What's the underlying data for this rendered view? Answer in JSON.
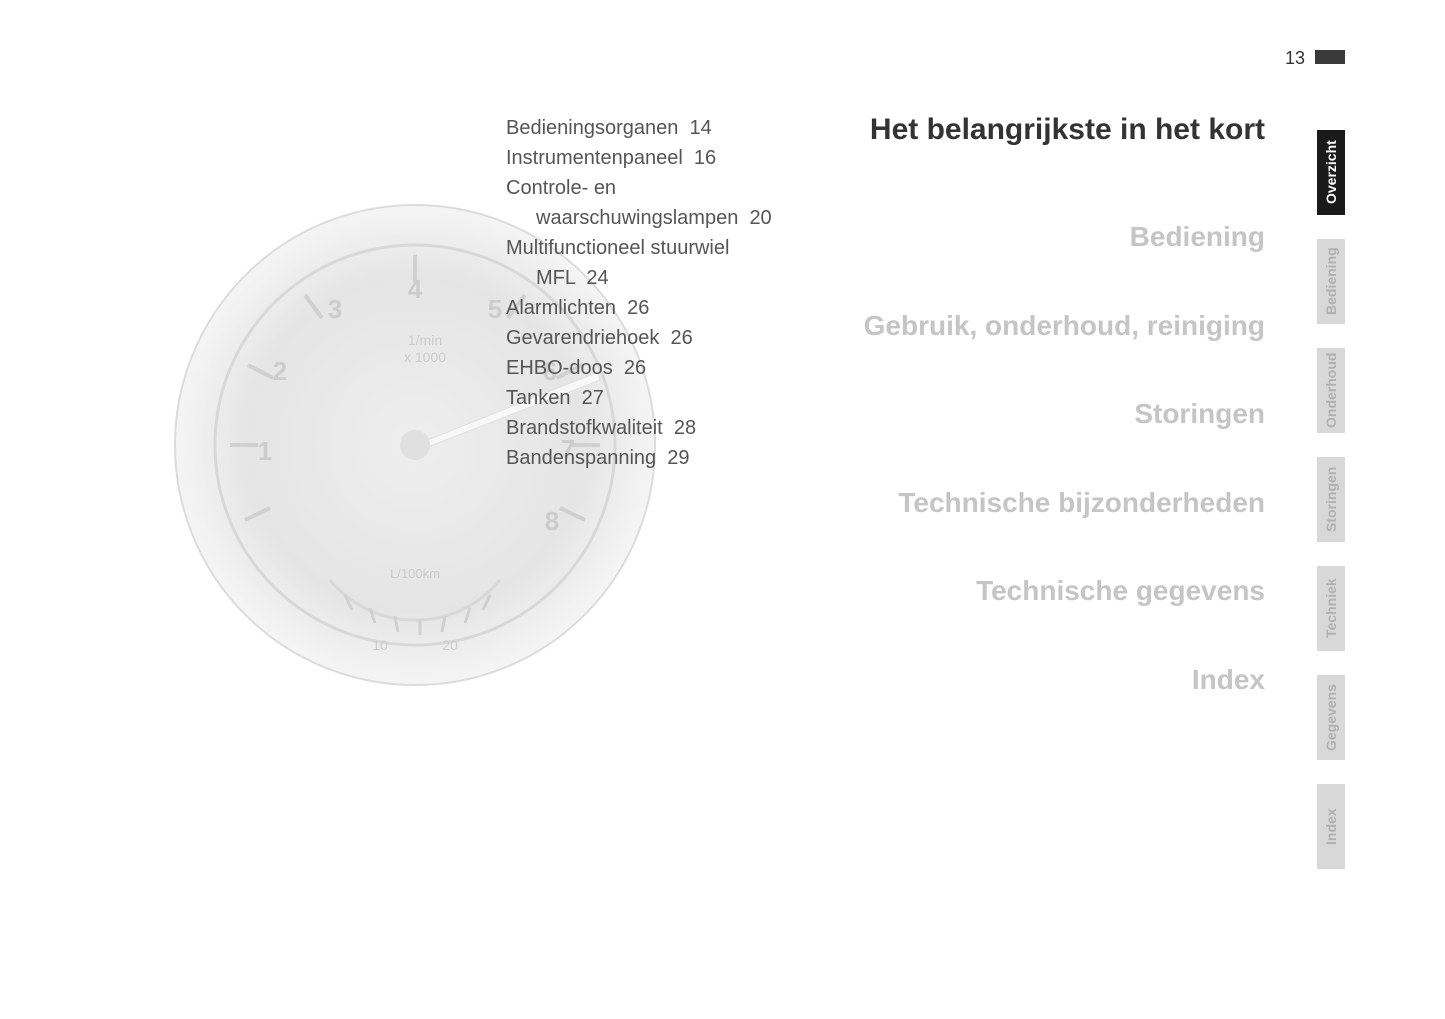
{
  "page_number": "13",
  "toc": [
    {
      "label": "Bedieningsorganen",
      "page": "14",
      "indent": false
    },
    {
      "label": "Instrumentenpaneel",
      "page": "16",
      "indent": false
    },
    {
      "label": "Controle- en",
      "page": "",
      "indent": false
    },
    {
      "label": "waarschuwingslampen",
      "page": "20",
      "indent": true
    },
    {
      "label": "Multifunctioneel stuurwiel",
      "page": "",
      "indent": false
    },
    {
      "label": "MFL",
      "page": "24",
      "indent": true
    },
    {
      "label": "Alarmlichten",
      "page": "26",
      "indent": false
    },
    {
      "label": "Gevarendriehoek",
      "page": "26",
      "indent": false
    },
    {
      "label": "EHBO-doos",
      "page": "26",
      "indent": false
    },
    {
      "label": "Tanken",
      "page": "27",
      "indent": false
    },
    {
      "label": "Brandstofkwaliteit",
      "page": "28",
      "indent": false
    },
    {
      "label": "Bandenspanning",
      "page": "29",
      "indent": false
    }
  ],
  "main_heading": "Het belangrijkste in het kort",
  "sections": [
    "Bediening",
    "Gebruik, onderhoud, reiniging",
    "Storingen",
    "Technische bijzonderheden",
    "Technische gegevens",
    "Index"
  ],
  "tabs": [
    {
      "label": "Overzicht",
      "active": true
    },
    {
      "label": "Bediening",
      "active": false
    },
    {
      "label": "Onderhoud",
      "active": false
    },
    {
      "label": "Storingen",
      "active": false
    },
    {
      "label": "Techniek",
      "active": false
    },
    {
      "label": "Gegevens",
      "active": false
    },
    {
      "label": "Index",
      "active": false
    }
  ],
  "gauge": {
    "background_fill": "#e8e8e8",
    "stroke_color": "#d5d5d5",
    "needle_color": "#f5f5f5",
    "text_color": "#cccccc",
    "rpm_label": "1/min",
    "rpm_mult": "x 1000",
    "speed_label": "L/100km",
    "numbers": [
      "1",
      "2",
      "3",
      "4",
      "5",
      "6",
      "7",
      "8"
    ],
    "speed_numbers": [
      "10",
      "20"
    ]
  },
  "colors": {
    "page_bg": "#ffffff",
    "text_dark": "#333333",
    "text_toc": "#555555",
    "text_faded": "#c5c5c5",
    "tab_active_bg": "#1a1a1a",
    "tab_active_fg": "#ffffff",
    "tab_inactive_bg": "#d8d8d8",
    "tab_inactive_fg": "#b0b0b0",
    "marker": "#3a3a3a"
  },
  "typography": {
    "body_font": "Arial, Helvetica, sans-serif",
    "toc_fontsize": 20,
    "heading_fontsize": 30,
    "section_fontsize": 28,
    "page_number_fontsize": 18,
    "tab_fontsize": 14
  }
}
